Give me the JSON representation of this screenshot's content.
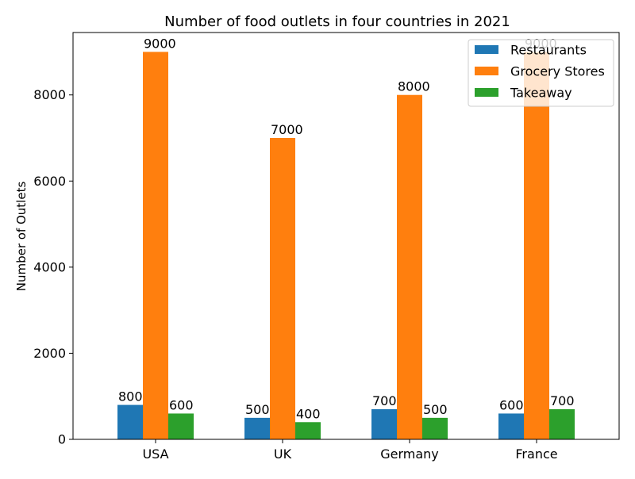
{
  "chart_data": {
    "type": "bar",
    "title": "Number of food outlets in four countries in 2021",
    "xlabel": "",
    "ylabel": "Number of Outlets",
    "categories": [
      "USA",
      "UK",
      "Germany",
      "France"
    ],
    "series": [
      {
        "name": "Restaurants",
        "color": "#1f77b4",
        "values": [
          800,
          500,
          700,
          600
        ]
      },
      {
        "name": "Grocery Stores",
        "color": "#ff7f0e",
        "values": [
          9000,
          7000,
          8000,
          9000
        ]
      },
      {
        "name": "Takeaway",
        "color": "#2ca02c",
        "values": [
          600,
          400,
          500,
          700
        ]
      }
    ],
    "ylim": [
      0,
      9450
    ],
    "yticks": [
      0,
      2000,
      4000,
      6000,
      8000
    ],
    "grid": false,
    "legend_position": "top-right",
    "data_labels": true
  }
}
